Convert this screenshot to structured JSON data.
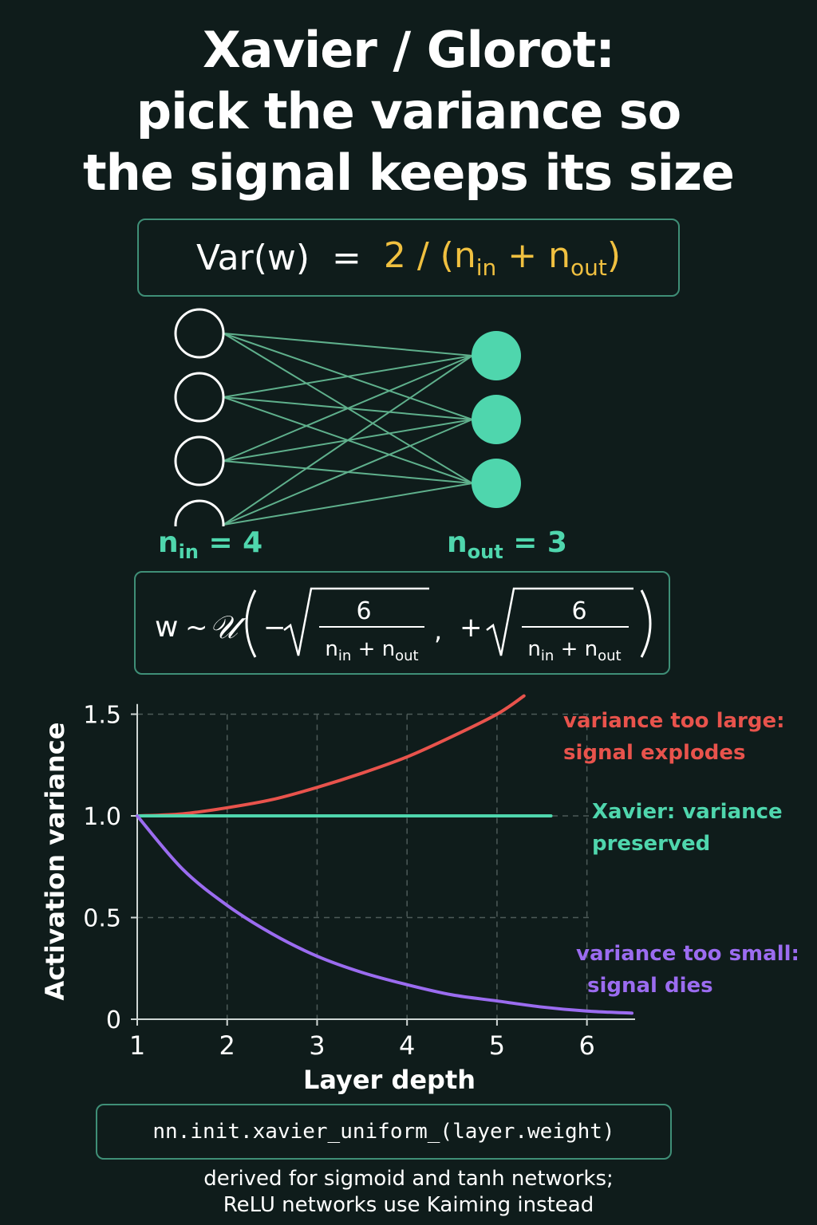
{
  "title": {
    "line1": "Xavier / Glorot:",
    "line2": "pick the variance so",
    "line3": "the signal keeps its size"
  },
  "formula_var": {
    "lhs": "Var(w)  =  ",
    "rhs_prefix": "2 / (n",
    "sub_in": "in",
    "plus": " + n",
    "sub_out": "out",
    "close": ")"
  },
  "network": {
    "inputs_count": 4,
    "outputs_count": 3,
    "input_label_n": "n",
    "input_label_sub": "in",
    "input_label_rest": " = 4",
    "output_label_n": "n",
    "output_label_sub": "out",
    "output_label_rest": " = 3"
  },
  "formula_uniform": {
    "w": "w",
    "tilde": "~",
    "U": "𝒰",
    "minus": "−",
    "plus": "+",
    "comma": ",",
    "numerator": "6",
    "den_n1": "n",
    "den_sub_in": "in",
    "den_plus": " + n",
    "den_sub_out": "out"
  },
  "colors": {
    "background": "#0f1c1b",
    "accent_teal": "#4fd6ad",
    "yellow": "#f0c040",
    "red": "#e8534c",
    "purple": "#9b6cf0",
    "box_border": "#3f8f77"
  },
  "chart_data": {
    "type": "line",
    "xlabel": "Layer depth",
    "ylabel": "Activation variance",
    "xlim": [
      1,
      6.5
    ],
    "ylim": [
      0,
      1.6
    ],
    "xticks": [
      "1",
      "2",
      "3",
      "4",
      "5",
      "6"
    ],
    "yticks": [
      "0",
      "0.5",
      "1.0",
      "1.5"
    ],
    "grid": "dashed",
    "series": [
      {
        "name": "variance too large: signal explodes",
        "label_line1": "variance too large:",
        "label_line2": "signal explodes",
        "color": "#e8534c",
        "x": [
          1,
          1.5,
          2,
          2.5,
          3,
          3.5,
          4,
          4.5,
          5,
          5.3
        ],
        "y": [
          1.0,
          1.01,
          1.04,
          1.08,
          1.14,
          1.21,
          1.29,
          1.39,
          1.5,
          1.59
        ]
      },
      {
        "name": "Xavier: variance preserved",
        "label_line1": "Xavier: variance",
        "label_line2": "preserved",
        "color": "#4fd6ad",
        "x": [
          1,
          5.6
        ],
        "y": [
          1.0,
          1.0
        ]
      },
      {
        "name": "variance too small: signal dies",
        "label_line1": "variance too small:",
        "label_line2": "signal dies",
        "color": "#9b6cf0",
        "x": [
          1,
          1.5,
          2,
          2.5,
          3,
          3.5,
          4,
          4.5,
          5,
          5.5,
          6,
          6.5
        ],
        "y": [
          1.0,
          0.74,
          0.56,
          0.42,
          0.31,
          0.23,
          0.17,
          0.12,
          0.09,
          0.06,
          0.04,
          0.03
        ]
      }
    ]
  },
  "code": "nn.init.xavier_uniform_(layer.weight)",
  "footer": {
    "line1": "derived for sigmoid and tanh networks;",
    "line2": "ReLU networks use Kaiming instead"
  }
}
